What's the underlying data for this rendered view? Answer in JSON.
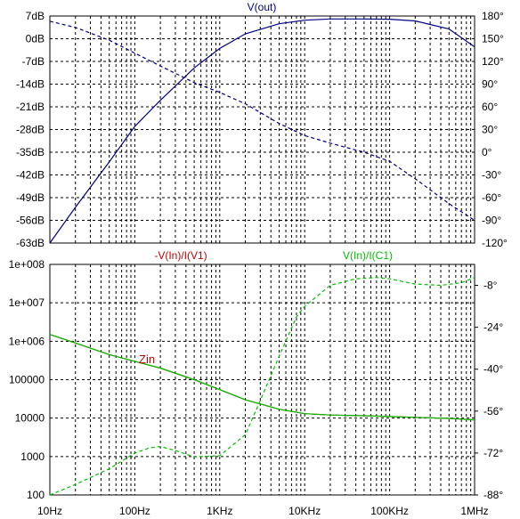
{
  "chart_data": [
    {
      "type": "line",
      "title": "V(out)",
      "x_scale": "log",
      "xlim_hz": [
        10,
        1000000
      ],
      "x_tick_labels": [
        "10Hz",
        "100Hz",
        "1KHz",
        "10KHz",
        "100KHz",
        "1MHz"
      ],
      "left_axis": {
        "ylim_db": [
          -63,
          7
        ],
        "tick_labels": [
          "7dB",
          "0dB",
          "-7dB",
          "-14dB",
          "-21dB",
          "-28dB",
          "-35dB",
          "-42dB",
          "-49dB",
          "-56dB",
          "-63dB"
        ]
      },
      "right_axis": {
        "ylim_deg": [
          -120,
          180
        ],
        "tick_labels": [
          "180°",
          "150°",
          "120°",
          "90°",
          "60°",
          "30°",
          "0°",
          "-30°",
          "-60°",
          "-90°",
          "-120°"
        ]
      },
      "grid": true,
      "series": [
        {
          "name": "",
          "quantity": "magnitude",
          "axis": "left",
          "style": "solid",
          "color": "#000080",
          "points": [
            [
              10,
              -63
            ],
            [
              20,
              -52
            ],
            [
              50,
              -38
            ],
            [
              100,
              -27
            ],
            [
              200,
              -19
            ],
            [
              500,
              -9
            ],
            [
              1000,
              -3
            ],
            [
              2000,
              1.5
            ],
            [
              5000,
              4.6
            ],
            [
              10000,
              5.7
            ],
            [
              20000,
              6.1
            ],
            [
              50000,
              6.1
            ],
            [
              100000,
              6.0
            ],
            [
              200000,
              5.5
            ],
            [
              500000,
              3.0
            ],
            [
              1000000,
              -2.5
            ]
          ]
        },
        {
          "name": "",
          "quantity": "phase",
          "axis": "right",
          "style": "dashed",
          "color": "#000080",
          "points": [
            [
              10,
              173
            ],
            [
              20,
              165
            ],
            [
              50,
              148
            ],
            [
              100,
              131
            ],
            [
              200,
              114
            ],
            [
              500,
              92
            ],
            [
              1000,
              79
            ],
            [
              2000,
              64
            ],
            [
              5000,
              38
            ],
            [
              10000,
              22
            ],
            [
              20000,
              12
            ],
            [
              50000,
              0
            ],
            [
              100000,
              -12
            ],
            [
              200000,
              -35
            ],
            [
              500000,
              -68
            ],
            [
              1000000,
              -90
            ]
          ]
        }
      ]
    },
    {
      "type": "line",
      "x_scale": "log",
      "y_scale": "log",
      "xlim_hz": [
        10,
        1000000
      ],
      "x_tick_labels": [
        "10Hz",
        "100Hz",
        "1KHz",
        "10KHz",
        "100KHz",
        "1MHz"
      ],
      "left_axis": {
        "ylim": [
          100,
          100000000
        ],
        "tick_labels": [
          "1e+008",
          "1e+007",
          "1e+006",
          "100000",
          "10000",
          "1000",
          "100"
        ]
      },
      "right_axis": {
        "ylim_deg": [
          -88,
          0
        ],
        "tick_labels": [
          "-8°",
          "-24°",
          "-40°",
          "-56°",
          "-72°",
          "-88°"
        ]
      },
      "grid": true,
      "annotation": {
        "text": "Zin",
        "color": "#c00000"
      },
      "series": [
        {
          "name": "-V(In)/I(V1)",
          "color": "#c00000",
          "style": "solid",
          "axis": "left",
          "points": [
            [
              10,
              1500000
            ],
            [
              20,
              900000
            ],
            [
              50,
              450000
            ],
            [
              100,
              300000
            ],
            [
              200,
              200000
            ],
            [
              500,
              100000
            ],
            [
              1000,
              55000
            ],
            [
              2000,
              30000
            ],
            [
              5000,
              17000
            ],
            [
              10000,
              13000
            ],
            [
              20000,
              12000
            ],
            [
              50000,
              11500
            ],
            [
              100000,
              11000
            ],
            [
              200000,
              10500
            ],
            [
              500000,
              9800
            ],
            [
              1000000,
              9000
            ]
          ]
        },
        {
          "name": "V(In)/I(C1)",
          "color": "#00c000",
          "style": "solid",
          "axis": "left",
          "points": [
            [
              10,
              1500000
            ],
            [
              20,
              900000
            ],
            [
              50,
              450000
            ],
            [
              100,
              300000
            ],
            [
              200,
              200000
            ],
            [
              500,
              100000
            ],
            [
              1000,
              55000
            ],
            [
              2000,
              30000
            ],
            [
              5000,
              17000
            ],
            [
              10000,
              13000
            ],
            [
              20000,
              12000
            ],
            [
              50000,
              11500
            ],
            [
              100000,
              11000
            ],
            [
              200000,
              10500
            ],
            [
              500000,
              9800
            ],
            [
              1000000,
              9000
            ]
          ]
        },
        {
          "name": "V(In)/I(C1)",
          "quantity": "phase",
          "color": "#00c000",
          "style": "dashed",
          "axis": "right",
          "points": [
            [
              10,
              -88
            ],
            [
              20,
              -84
            ],
            [
              50,
              -78
            ],
            [
              100,
              -72
            ],
            [
              150,
              -70
            ],
            [
              200,
              -69.5
            ],
            [
              300,
              -71
            ],
            [
              500,
              -73.5
            ],
            [
              1000,
              -73
            ],
            [
              2000,
              -65
            ],
            [
              3000,
              -52
            ],
            [
              5000,
              -35
            ],
            [
              8000,
              -20
            ],
            [
              10000,
              -16
            ],
            [
              20000,
              -8
            ],
            [
              40000,
              -5.5
            ],
            [
              70000,
              -5
            ],
            [
              100000,
              -5.5
            ],
            [
              200000,
              -7.5
            ],
            [
              400000,
              -8
            ],
            [
              700000,
              -7
            ],
            [
              1000000,
              -5
            ]
          ]
        }
      ]
    }
  ]
}
